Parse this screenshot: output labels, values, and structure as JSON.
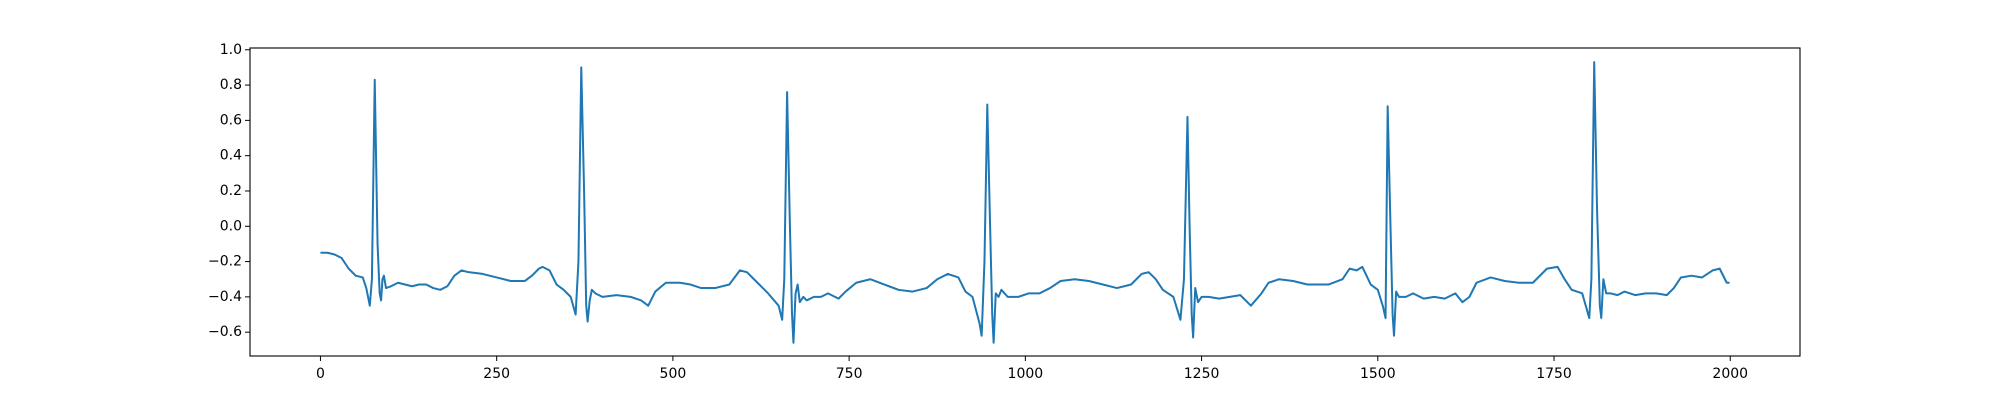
{
  "chart_data": {
    "type": "line",
    "x": [
      0,
      10,
      20,
      30,
      40,
      50,
      60,
      65,
      70,
      73,
      77,
      81,
      84,
      86,
      88,
      90,
      93,
      100,
      110,
      120,
      130,
      140,
      150,
      160,
      170,
      180,
      190,
      200,
      210,
      230,
      250,
      270,
      290,
      300,
      310,
      315,
      325,
      335,
      345,
      355,
      362,
      366,
      370,
      374,
      377,
      379,
      382,
      385,
      390,
      400,
      420,
      440,
      455,
      465,
      475,
      490,
      510,
      525,
      540,
      560,
      580,
      595,
      605,
      620,
      635,
      650,
      655,
      658,
      662,
      666,
      669,
      671,
      674,
      677,
      680,
      685,
      690,
      700,
      710,
      720,
      735,
      745,
      760,
      780,
      800,
      820,
      840,
      860,
      875,
      890,
      905,
      915,
      925,
      935,
      938,
      942,
      946,
      950,
      953,
      955,
      958,
      962,
      966,
      975,
      990,
      1005,
      1020,
      1035,
      1050,
      1070,
      1090,
      1110,
      1130,
      1150,
      1165,
      1175,
      1185,
      1195,
      1210,
      1220,
      1225,
      1230,
      1233,
      1236,
      1238,
      1241,
      1245,
      1250,
      1260,
      1275,
      1290,
      1305,
      1320,
      1335,
      1345,
      1360,
      1380,
      1400,
      1430,
      1450,
      1460,
      1470,
      1478,
      1490,
      1500,
      1507,
      1511,
      1514,
      1518,
      1521,
      1523,
      1526,
      1530,
      1540,
      1550,
      1565,
      1580,
      1595,
      1610,
      1620,
      1630,
      1640,
      1660,
      1680,
      1700,
      1720,
      1740,
      1755,
      1765,
      1775,
      1790,
      1800,
      1803,
      1807,
      1811,
      1815,
      1817,
      1820,
      1824,
      1830,
      1840,
      1850,
      1865,
      1880,
      1895,
      1910,
      1920,
      1930,
      1945,
      1960,
      1975,
      1985,
      1995,
      1999
    ],
    "series": [
      {
        "color": "#1f77b4",
        "values": [
          -0.15,
          -0.15,
          -0.16,
          -0.18,
          -0.24,
          -0.28,
          -0.29,
          -0.35,
          -0.45,
          -0.3,
          0.83,
          -0.1,
          -0.38,
          -0.42,
          -0.3,
          -0.28,
          -0.35,
          -0.34,
          -0.32,
          -0.33,
          -0.34,
          -0.33,
          -0.33,
          -0.35,
          -0.36,
          -0.34,
          -0.28,
          -0.25,
          -0.26,
          -0.27,
          -0.29,
          -0.31,
          -0.31,
          -0.28,
          -0.24,
          -0.23,
          -0.25,
          -0.33,
          -0.36,
          -0.4,
          -0.5,
          -0.2,
          0.9,
          0.2,
          -0.45,
          -0.54,
          -0.42,
          -0.36,
          -0.38,
          -0.4,
          -0.39,
          -0.4,
          -0.42,
          -0.45,
          -0.37,
          -0.32,
          -0.32,
          -0.33,
          -0.35,
          -0.35,
          -0.33,
          -0.25,
          -0.26,
          -0.32,
          -0.38,
          -0.45,
          -0.53,
          -0.3,
          0.76,
          0.0,
          -0.5,
          -0.66,
          -0.38,
          -0.33,
          -0.43,
          -0.4,
          -0.42,
          -0.4,
          -0.4,
          -0.38,
          -0.41,
          -0.37,
          -0.32,
          -0.3,
          -0.33,
          -0.36,
          -0.37,
          -0.35,
          -0.3,
          -0.27,
          -0.29,
          -0.37,
          -0.4,
          -0.55,
          -0.62,
          -0.2,
          0.69,
          0.0,
          -0.5,
          -0.66,
          -0.38,
          -0.4,
          -0.36,
          -0.4,
          -0.4,
          -0.38,
          -0.38,
          -0.35,
          -0.31,
          -0.3,
          -0.31,
          -0.33,
          -0.35,
          -0.33,
          -0.27,
          -0.26,
          -0.3,
          -0.36,
          -0.4,
          -0.53,
          -0.3,
          0.62,
          0.0,
          -0.5,
          -0.63,
          -0.35,
          -0.43,
          -0.4,
          -0.4,
          -0.41,
          -0.4,
          -0.39,
          -0.45,
          -0.38,
          -0.32,
          -0.3,
          -0.31,
          -0.33,
          -0.33,
          -0.3,
          -0.24,
          -0.25,
          -0.23,
          -0.33,
          -0.36,
          -0.45,
          -0.52,
          0.68,
          0.0,
          -0.5,
          -0.62,
          -0.37,
          -0.4,
          -0.4,
          -0.38,
          -0.41,
          -0.4,
          -0.41,
          -0.38,
          -0.43,
          -0.4,
          -0.32,
          -0.29,
          -0.31,
          -0.32,
          -0.32,
          -0.24,
          -0.23,
          -0.3,
          -0.36,
          -0.38,
          -0.52,
          -0.3,
          0.93,
          0.1,
          -0.45,
          -0.52,
          -0.3,
          -0.38,
          -0.38,
          -0.39,
          -0.37,
          -0.39,
          -0.38,
          -0.38,
          -0.39,
          -0.35,
          -0.29,
          -0.28,
          -0.29,
          -0.25,
          -0.24,
          -0.32,
          -0.32
        ]
      }
    ],
    "xlim": [
      -99.95,
      2098.95
    ],
    "ylim": [
      -0.735,
      1.01
    ],
    "xticks": [
      0,
      250,
      500,
      750,
      1000,
      1250,
      1500,
      1750,
      2000
    ],
    "yticks": [
      {
        "value": -0.6,
        "label": "−0.6"
      },
      {
        "value": -0.4,
        "label": "−0.4"
      },
      {
        "value": -0.2,
        "label": "−0.2"
      },
      {
        "value": 0,
        "label": "0.0"
      },
      0.2,
      0.4,
      0.6,
      0.8,
      {
        "value": 1.0,
        "label": "1.0"
      }
    ]
  }
}
